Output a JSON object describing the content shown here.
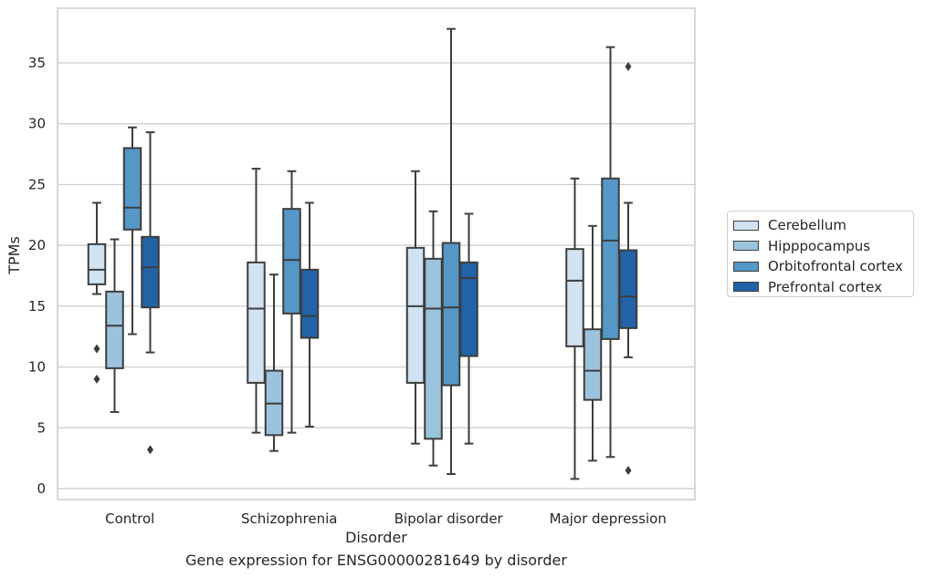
{
  "chart_data": {
    "type": "box",
    "title": "Gene expression for ENSG00000281649 by disorder",
    "xlabel": "Disorder",
    "ylabel": "TPMs",
    "ylim": [
      -0.9,
      39.5
    ],
    "yticks": [
      0,
      5,
      10,
      15,
      20,
      25,
      30,
      35
    ],
    "grid": "horizontal",
    "legend_position": "right",
    "categories": [
      "Control",
      "Schizophrenia",
      "Bipolar disorder",
      "Major depression"
    ],
    "series": [
      {
        "name": "Cerebellum",
        "color": "#d1e2f2",
        "boxes": [
          {
            "q1": 16.8,
            "median": 18.0,
            "q3": 20.1,
            "whisker_low": 16.0,
            "whisker_high": 23.5,
            "outliers": [
              11.5,
              9.0
            ]
          },
          {
            "q1": 8.7,
            "median": 14.8,
            "q3": 18.6,
            "whisker_low": 4.6,
            "whisker_high": 26.3,
            "outliers": []
          },
          {
            "q1": 8.7,
            "median": 15.0,
            "q3": 19.8,
            "whisker_low": 3.7,
            "whisker_high": 26.1,
            "outliers": []
          },
          {
            "q1": 11.7,
            "median": 17.1,
            "q3": 19.7,
            "whisker_low": 0.8,
            "whisker_high": 25.5,
            "outliers": []
          }
        ]
      },
      {
        "name": "Hipppocampus",
        "color": "#9cc3dd",
        "boxes": [
          {
            "q1": 9.9,
            "median": 13.4,
            "q3": 16.2,
            "whisker_low": 6.3,
            "whisker_high": 20.5,
            "outliers": []
          },
          {
            "q1": 4.4,
            "median": 7.0,
            "q3": 9.7,
            "whisker_low": 3.1,
            "whisker_high": 17.6,
            "outliers": []
          },
          {
            "q1": 4.1,
            "median": 14.8,
            "q3": 18.9,
            "whisker_low": 1.9,
            "whisker_high": 22.8,
            "outliers": []
          },
          {
            "q1": 7.3,
            "median": 9.7,
            "q3": 13.1,
            "whisker_low": 2.3,
            "whisker_high": 21.6,
            "outliers": []
          }
        ]
      },
      {
        "name": "Orbitofrontal cortex",
        "color": "#5597c6",
        "boxes": [
          {
            "q1": 21.3,
            "median": 23.1,
            "q3": 28.0,
            "whisker_low": 12.7,
            "whisker_high": 29.7,
            "outliers": []
          },
          {
            "q1": 14.4,
            "median": 18.8,
            "q3": 23.0,
            "whisker_low": 4.6,
            "whisker_high": 26.1,
            "outliers": []
          },
          {
            "q1": 8.5,
            "median": 14.9,
            "q3": 20.2,
            "whisker_low": 1.2,
            "whisker_high": 37.8,
            "outliers": []
          },
          {
            "q1": 12.3,
            "median": 20.4,
            "q3": 25.5,
            "whisker_low": 2.6,
            "whisker_high": 36.3,
            "outliers": []
          }
        ]
      },
      {
        "name": "Prefrontal cortex",
        "color": "#2262a6",
        "boxes": [
          {
            "q1": 14.9,
            "median": 18.2,
            "q3": 20.7,
            "whisker_low": 11.2,
            "whisker_high": 29.3,
            "outliers": [
              3.2
            ]
          },
          {
            "q1": 12.4,
            "median": 14.2,
            "q3": 18.0,
            "whisker_low": 5.1,
            "whisker_high": 23.5,
            "outliers": []
          },
          {
            "q1": 10.9,
            "median": 17.3,
            "q3": 18.6,
            "whisker_low": 3.7,
            "whisker_high": 22.6,
            "outliers": []
          },
          {
            "q1": 13.2,
            "median": 15.8,
            "q3": 19.6,
            "whisker_low": 10.8,
            "whisker_high": 23.5,
            "outliers": [
              34.7,
              1.5
            ]
          }
        ]
      }
    ]
  }
}
